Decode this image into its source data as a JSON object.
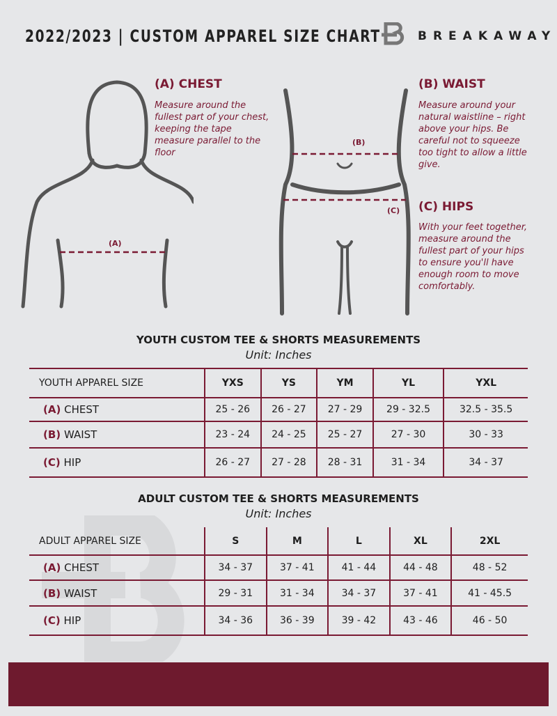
{
  "header": {
    "title": "2022/2023  |  CUSTOM APPAREL SIZE CHART",
    "brand": "BREAKAWAY"
  },
  "colors": {
    "accent": "#7a1a33",
    "background": "#e6e7e9",
    "footer": "#6e1a2e"
  },
  "measures": {
    "chest": {
      "title": "(A) CHEST",
      "text": "Measure around the fullest part of your chest, keeping the tape measure parallel to the floor",
      "marker": "(A)"
    },
    "waist": {
      "title": "(B) WAIST",
      "text": "Measure around your natural waistline – right above your hips. Be careful not to squeeze too tight to allow a little give.",
      "marker": "(B)"
    },
    "hips": {
      "title": "(C) HIPS",
      "text": "With your feet together, measure around the fullest part of your hips to ensure you'll have enough room to move comfortably.",
      "marker": "(C)"
    }
  },
  "youth": {
    "title": "YOUTH CUSTOM TEE & SHORTS MEASUREMENTS",
    "unit": "Unit: Inches",
    "header": "YOUTH APPAREL SIZE",
    "sizes": [
      "YXS",
      "YS",
      "YM",
      "YL",
      "YXL"
    ],
    "rows": [
      {
        "code": "(A)",
        "label": "CHEST",
        "values": [
          "25 - 26",
          "26 - 27",
          "27 - 29",
          "29 - 32.5",
          "32.5 - 35.5"
        ]
      },
      {
        "code": "(B)",
        "label": "WAIST",
        "values": [
          "23 - 24",
          "24 - 25",
          "25 - 27",
          "27 - 30",
          "30 - 33"
        ]
      },
      {
        "code": "(C)",
        "label": "HIP",
        "values": [
          "26 - 27",
          "27 - 28",
          "28 - 31",
          "31 - 34",
          "34 - 37"
        ]
      }
    ]
  },
  "adult": {
    "title": "ADULT CUSTOM TEE & SHORTS MEASUREMENTS",
    "unit": "Unit: Inches",
    "header": "ADULT APPAREL SIZE",
    "sizes": [
      "S",
      "M",
      "L",
      "XL",
      "2XL"
    ],
    "rows": [
      {
        "code": "(A)",
        "label": "CHEST",
        "values": [
          "34 - 37",
          "37 - 41",
          "41 - 44",
          "44 - 48",
          "48 - 52"
        ]
      },
      {
        "code": "(B)",
        "label": "WAIST",
        "values": [
          "29 - 31",
          "31 - 34",
          "34 - 37",
          "37 - 41",
          "41 - 45.5"
        ]
      },
      {
        "code": "(C)",
        "label": "HIP",
        "values": [
          "34 - 36",
          "36 - 39",
          "39 - 42",
          "43 - 46",
          "46 - 50"
        ]
      }
    ]
  }
}
